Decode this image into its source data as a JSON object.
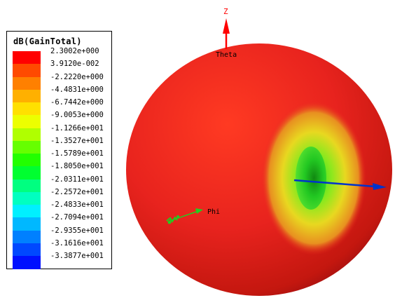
{
  "legend": {
    "title": "dB(GainTotal)",
    "entries": [
      {
        "label": "2.3002e+000",
        "color": "#ff0000"
      },
      {
        "label": "3.9120e-002",
        "color": "#ff4a00"
      },
      {
        "label": "-2.2220e+000",
        "color": "#ff8000"
      },
      {
        "label": "-4.4831e+000",
        "color": "#ffb000"
      },
      {
        "label": "-6.7442e+000",
        "color": "#ffe000"
      },
      {
        "label": "-9.0053e+000",
        "color": "#ecff00"
      },
      {
        "label": "-1.1266e+001",
        "color": "#b0ff00"
      },
      {
        "label": "-1.3527e+001",
        "color": "#66ff00"
      },
      {
        "label": "-1.5789e+001",
        "color": "#22ff00"
      },
      {
        "label": "-1.8050e+001",
        "color": "#00ff30"
      },
      {
        "label": "-2.0311e+001",
        "color": "#00ff80"
      },
      {
        "label": "-2.2572e+001",
        "color": "#00ffc0"
      },
      {
        "label": "-2.4833e+001",
        "color": "#00f0ff"
      },
      {
        "label": "-2.7094e+001",
        "color": "#00b8ff"
      },
      {
        "label": "-2.9355e+001",
        "color": "#0080ff"
      },
      {
        "label": "-3.1616e+001",
        "color": "#0048ff"
      },
      {
        "label": "-3.3877e+001",
        "color": "#0010ff"
      }
    ]
  },
  "axes": {
    "z_label": "Z",
    "theta_label": "Theta",
    "phi_label": "Phi",
    "z_color": "#ff0000",
    "x_color": "#0033cc",
    "phi_color": "#22cc22"
  },
  "pattern": {
    "main_color": "#e8231e",
    "highlight_color": "#ff3a22",
    "shadow_color": "#b01410",
    "rim_color": "#f0d020",
    "null_color": "#2ee82e"
  }
}
